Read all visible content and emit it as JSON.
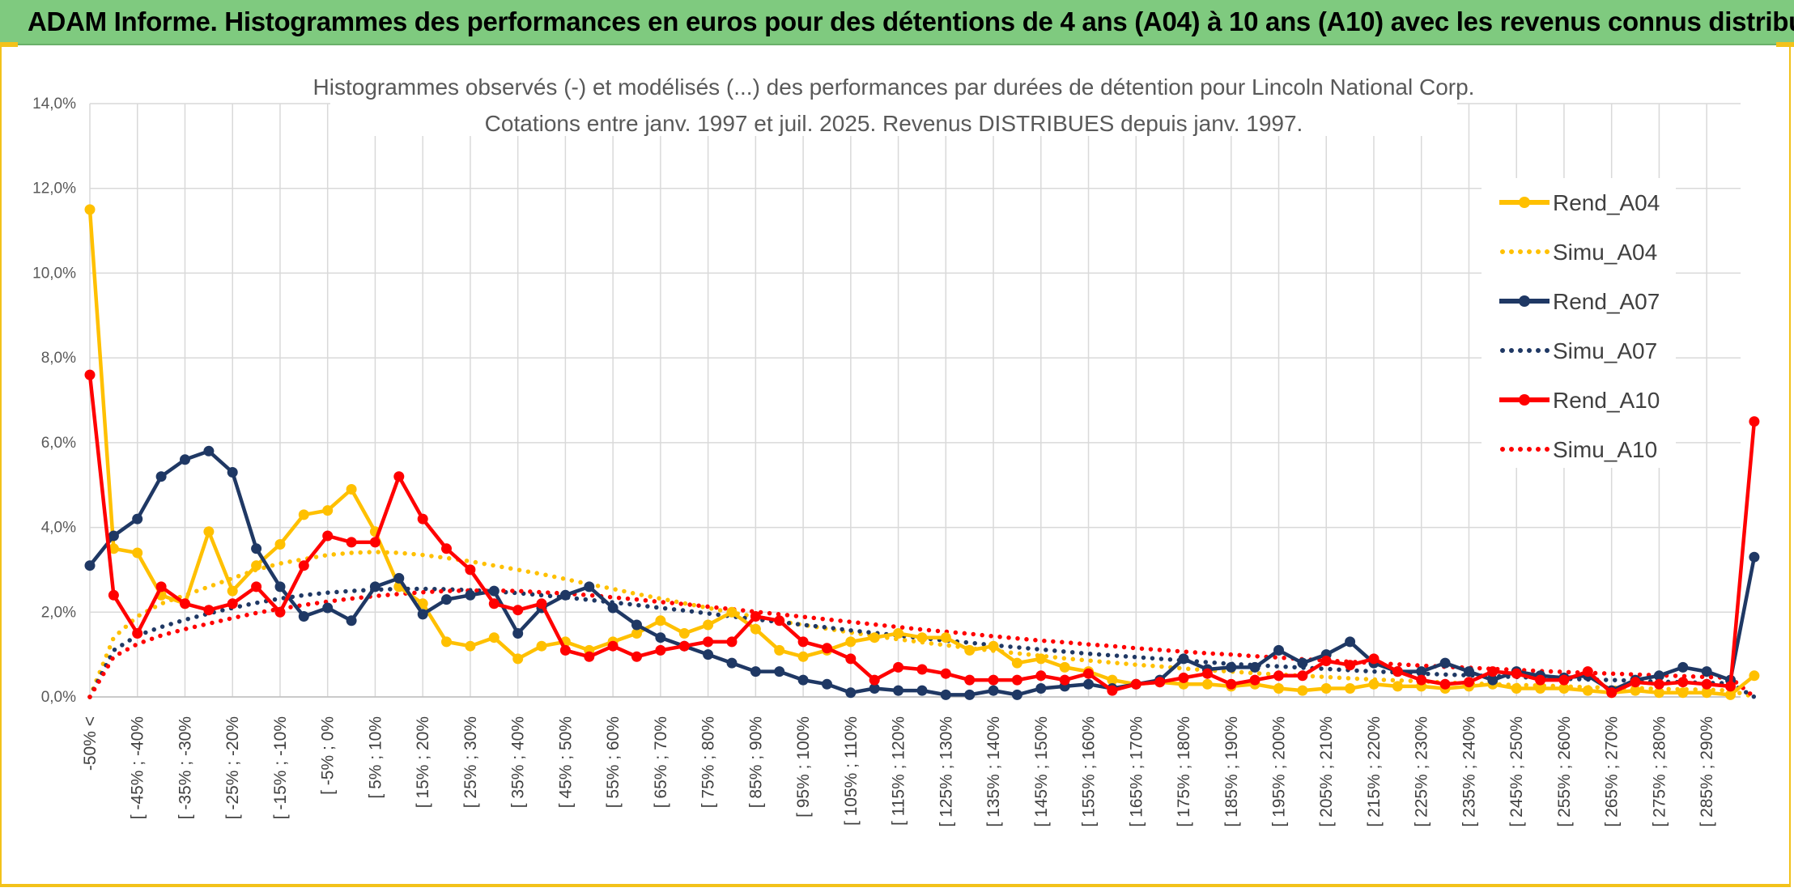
{
  "banner": {
    "title": "ADAM Informe. Histogrammes des performances en euros pour des détentions de 4 ans (A04) à 10 ans (A10) avec les revenus connus distribués"
  },
  "colors": {
    "banner_bg": "#7fca7f",
    "frame": "#f3c21a",
    "A04": "#ffc000",
    "A07": "#1f3864",
    "A10": "#ff0000",
    "grid": "#d9d9d9"
  },
  "chart_data": {
    "type": "line",
    "title": "Histogrammes observés (-) et modélisés (...) des performances par durées de détention pour Lincoln National Corp.",
    "subtitle": "Cotations entre janv. 1997 et juil. 2025. Revenus DISTRIBUES depuis janv. 1997.",
    "ylim": [
      0,
      14
    ],
    "y_ticks": [
      "0,0%",
      "2,0%",
      "4,0%",
      "6,0%",
      "8,0%",
      "10,0%",
      "12,0%",
      "14,0%"
    ],
    "grid": true,
    "legend_position": "top-right",
    "categories": [
      "-50% <",
      "[ -50% ; -45%]",
      "[ -45% ; -40%]",
      "[ -40% ; -35%]",
      "[ -35% ; -30%]",
      "[ -30% ; -25%]",
      "[ -25% ; -20%]",
      "[ -20% ; -15%]",
      "[ -15% ; -10%]",
      "[ -10% ; -5%]",
      "[ -5% ; 0%",
      "[ 0% ; 5%]",
      "[ 5% ; 10%",
      "[ 10% ; 15%]",
      "[ 15% ; 20%",
      "[ 20% ; 25%]",
      "[ 25% ; 30%",
      "[ 30% ; 35%]",
      "[ 35% ; 40%",
      "[ 40% ; 45%]",
      "[ 45% ; 50%",
      "[ 50% ; 55%]",
      "[ 55% ; 60%",
      "[ 60% ; 65%]",
      "[ 65% ; 70%",
      "[ 70% ; 75%]",
      "[ 75% ; 80%",
      "[ 80% ; 85%]",
      "[ 85% ; 90%",
      "[ 90% ; 95%]",
      "[ 95% ; 100%",
      "[ 100% ; 105%]",
      "[ 105% ; 110%",
      "[ 110% ; 115%]",
      "[ 115% ; 120%",
      "[ 120% ; 125%]",
      "[ 125% ; 130%",
      "[ 130% ; 135%]",
      "[ 135% ; 140%",
      "[ 140% ; 145%]",
      "[ 145% ; 150%",
      "[ 150% ; 155%]",
      "[ 155% ; 160%",
      "[ 160% ; 165%]",
      "[ 165% ; 170%",
      "[ 170% ; 175%]",
      "[ 175% ; 180%",
      "[ 180% ; 185%]",
      "[ 185% ; 190%",
      "[ 190% ; 195%]",
      "[ 195% ; 200%",
      "[ 200% ; 205%]",
      "[ 205% ; 210%",
      "[ 210% ; 215%]",
      "[ 215% ; 220%",
      "[ 220% ; 225%]",
      "[ 225% ; 230%",
      "[ 230% ; 235%]",
      "[ 235% ; 240%",
      "[ 240% ; 245%]",
      "[ 245% ; 250%",
      "[ 250% ; 255%]",
      "[ 255% ; 260%",
      "[ 260% ; 265%]",
      "[ 265% ; 270%",
      "[ 270% ; 275%]",
      "[ 275% ; 280%",
      "[ 280% ; 285%]",
      "[ 285% ; 290%",
      "[ 290% ; 295%]",
      ""
    ],
    "visible_tick_labels": [
      "-50% <",
      "[ -45% ; -40%",
      "[ -35% ; -30%",
      "[ -25% ; -20%",
      "[ -15% ; -10%",
      "[ -5% ; 0%",
      "[ 5% ; 10%",
      "[ 15% ; 20%",
      "[ 25% ; 30%",
      "[ 35% ; 40%",
      "[ 45% ; 50%",
      "[ 55% ; 60%",
      "[ 65% ; 70%",
      "[ 75% ; 80%",
      "[ 85% ; 90%",
      "[ 95% ; 100%",
      "[ 105% ; 110%",
      "[ 115% ; 120%",
      "[ 125% ; 130%",
      "[ 135% ; 140%",
      "[ 145% ; 150%",
      "[ 155% ; 160%",
      "[ 165% ; 170%",
      "[ 175% ; 180%",
      "[ 185% ; 190%",
      "[ 195% ; 200%",
      "[ 205% ; 210%",
      "[ 215% ; 220%",
      "[ 225% ; 230%",
      "[ 235% ; 240%",
      "[ 245% ; 250%",
      "[ 255% ; 260%",
      "[ 265% ; 270%",
      "[ 275% ; 280%",
      "[ 285% ; 290%"
    ],
    "series": [
      {
        "name": "Rend_A04",
        "style": "solid",
        "color": "#ffc000",
        "values": [
          11.5,
          3.5,
          3.4,
          2.4,
          2.2,
          3.9,
          2.5,
          3.1,
          3.6,
          4.3,
          4.4,
          4.9,
          3.9,
          2.6,
          2.2,
          1.3,
          1.2,
          1.4,
          0.9,
          1.2,
          1.3,
          1.1,
          1.3,
          1.5,
          1.8,
          1.5,
          1.7,
          2.0,
          1.6,
          1.1,
          0.95,
          1.1,
          1.3,
          1.4,
          1.5,
          1.4,
          1.4,
          1.1,
          1.2,
          0.8,
          0.9,
          0.7,
          0.6,
          0.4,
          0.3,
          0.35,
          0.3,
          0.3,
          0.25,
          0.3,
          0.2,
          0.15,
          0.2,
          0.2,
          0.3,
          0.25,
          0.25,
          0.2,
          0.25,
          0.3,
          0.2,
          0.2,
          0.2,
          0.15,
          0.1,
          0.15,
          0.1,
          0.1,
          0.1,
          0.05,
          0.5
        ]
      },
      {
        "name": "Simu_A04",
        "style": "dotted",
        "color": "#ffc000",
        "values": [
          0.0,
          1.4,
          1.9,
          2.2,
          2.4,
          2.6,
          2.8,
          3.0,
          3.15,
          3.25,
          3.35,
          3.4,
          3.42,
          3.4,
          3.35,
          3.28,
          3.2,
          3.1,
          3.0,
          2.9,
          2.78,
          2.66,
          2.55,
          2.43,
          2.32,
          2.21,
          2.1,
          1.99,
          1.89,
          1.79,
          1.7,
          1.61,
          1.52,
          1.44,
          1.36,
          1.29,
          1.22,
          1.15,
          1.09,
          1.03,
          0.97,
          0.91,
          0.86,
          0.81,
          0.76,
          0.72,
          0.67,
          0.63,
          0.6,
          0.56,
          0.53,
          0.5,
          0.47,
          0.44,
          0.41,
          0.39,
          0.37,
          0.34,
          0.32,
          0.3,
          0.28,
          0.27,
          0.25,
          0.23,
          0.22,
          0.21,
          0.19,
          0.18,
          0.17,
          0.15,
          0.0
        ]
      },
      {
        "name": "Rend_A07",
        "style": "solid",
        "color": "#1f3864",
        "values": [
          3.1,
          3.8,
          4.2,
          5.2,
          5.6,
          5.8,
          5.3,
          3.5,
          2.6,
          1.9,
          2.1,
          1.8,
          2.6,
          2.8,
          1.95,
          2.3,
          2.4,
          2.5,
          1.5,
          2.1,
          2.4,
          2.6,
          2.1,
          1.7,
          1.4,
          1.2,
          1.0,
          0.8,
          0.6,
          0.6,
          0.4,
          0.3,
          0.1,
          0.2,
          0.15,
          0.15,
          0.05,
          0.05,
          0.15,
          0.05,
          0.2,
          0.25,
          0.3,
          0.2,
          0.3,
          0.4,
          0.9,
          0.65,
          0.7,
          0.7,
          1.1,
          0.8,
          1.0,
          1.3,
          0.8,
          0.6,
          0.6,
          0.8,
          0.6,
          0.4,
          0.6,
          0.5,
          0.45,
          0.5,
          0.15,
          0.4,
          0.5,
          0.7,
          0.6,
          0.4,
          3.3
        ]
      },
      {
        "name": "Simu_A07",
        "style": "dotted",
        "color": "#1f3864",
        "values": [
          0.0,
          1.1,
          1.45,
          1.65,
          1.82,
          1.97,
          2.1,
          2.22,
          2.32,
          2.4,
          2.46,
          2.5,
          2.53,
          2.55,
          2.55,
          2.54,
          2.52,
          2.49,
          2.45,
          2.4,
          2.35,
          2.29,
          2.23,
          2.17,
          2.1,
          2.04,
          1.97,
          1.9,
          1.83,
          1.77,
          1.7,
          1.64,
          1.57,
          1.51,
          1.45,
          1.39,
          1.33,
          1.28,
          1.22,
          1.17,
          1.12,
          1.07,
          1.02,
          0.98,
          0.94,
          0.9,
          0.86,
          0.82,
          0.78,
          0.75,
          0.72,
          0.69,
          0.66,
          0.63,
          0.6,
          0.58,
          0.55,
          0.53,
          0.51,
          0.49,
          0.47,
          0.45,
          0.43,
          0.41,
          0.4,
          0.38,
          0.36,
          0.35,
          0.33,
          0.32,
          0.0
        ]
      },
      {
        "name": "Rend_A10",
        "style": "solid",
        "color": "#ff0000",
        "values": [
          7.6,
          2.4,
          1.5,
          2.6,
          2.2,
          2.05,
          2.2,
          2.6,
          2.0,
          3.1,
          3.8,
          3.65,
          3.65,
          5.2,
          4.2,
          3.5,
          3.0,
          2.2,
          2.05,
          2.2,
          1.1,
          0.95,
          1.2,
          0.95,
          1.1,
          1.2,
          1.3,
          1.3,
          1.9,
          1.8,
          1.3,
          1.15,
          0.9,
          0.4,
          0.7,
          0.65,
          0.55,
          0.4,
          0.4,
          0.4,
          0.5,
          0.4,
          0.55,
          0.15,
          0.3,
          0.35,
          0.45,
          0.55,
          0.3,
          0.4,
          0.5,
          0.5,
          0.85,
          0.75,
          0.9,
          0.6,
          0.4,
          0.3,
          0.35,
          0.6,
          0.55,
          0.4,
          0.4,
          0.6,
          0.1,
          0.35,
          0.3,
          0.35,
          0.3,
          0.25,
          6.5
        ]
      },
      {
        "name": "Simu_A10",
        "style": "dotted",
        "color": "#ff0000",
        "values": [
          0.0,
          0.95,
          1.25,
          1.45,
          1.6,
          1.73,
          1.86,
          1.98,
          2.08,
          2.17,
          2.25,
          2.32,
          2.38,
          2.43,
          2.47,
          2.5,
          2.51,
          2.51,
          2.5,
          2.47,
          2.44,
          2.4,
          2.35,
          2.3,
          2.24,
          2.19,
          2.13,
          2.07,
          2.01,
          1.95,
          1.89,
          1.83,
          1.77,
          1.71,
          1.65,
          1.59,
          1.54,
          1.49,
          1.43,
          1.38,
          1.33,
          1.29,
          1.24,
          1.2,
          1.15,
          1.11,
          1.07,
          1.03,
          1.0,
          0.96,
          0.93,
          0.89,
          0.86,
          0.83,
          0.8,
          0.77,
          0.74,
          0.71,
          0.69,
          0.66,
          0.64,
          0.61,
          0.59,
          0.57,
          0.55,
          0.53,
          0.51,
          0.49,
          0.47,
          0.45,
          0.0
        ]
      }
    ]
  }
}
